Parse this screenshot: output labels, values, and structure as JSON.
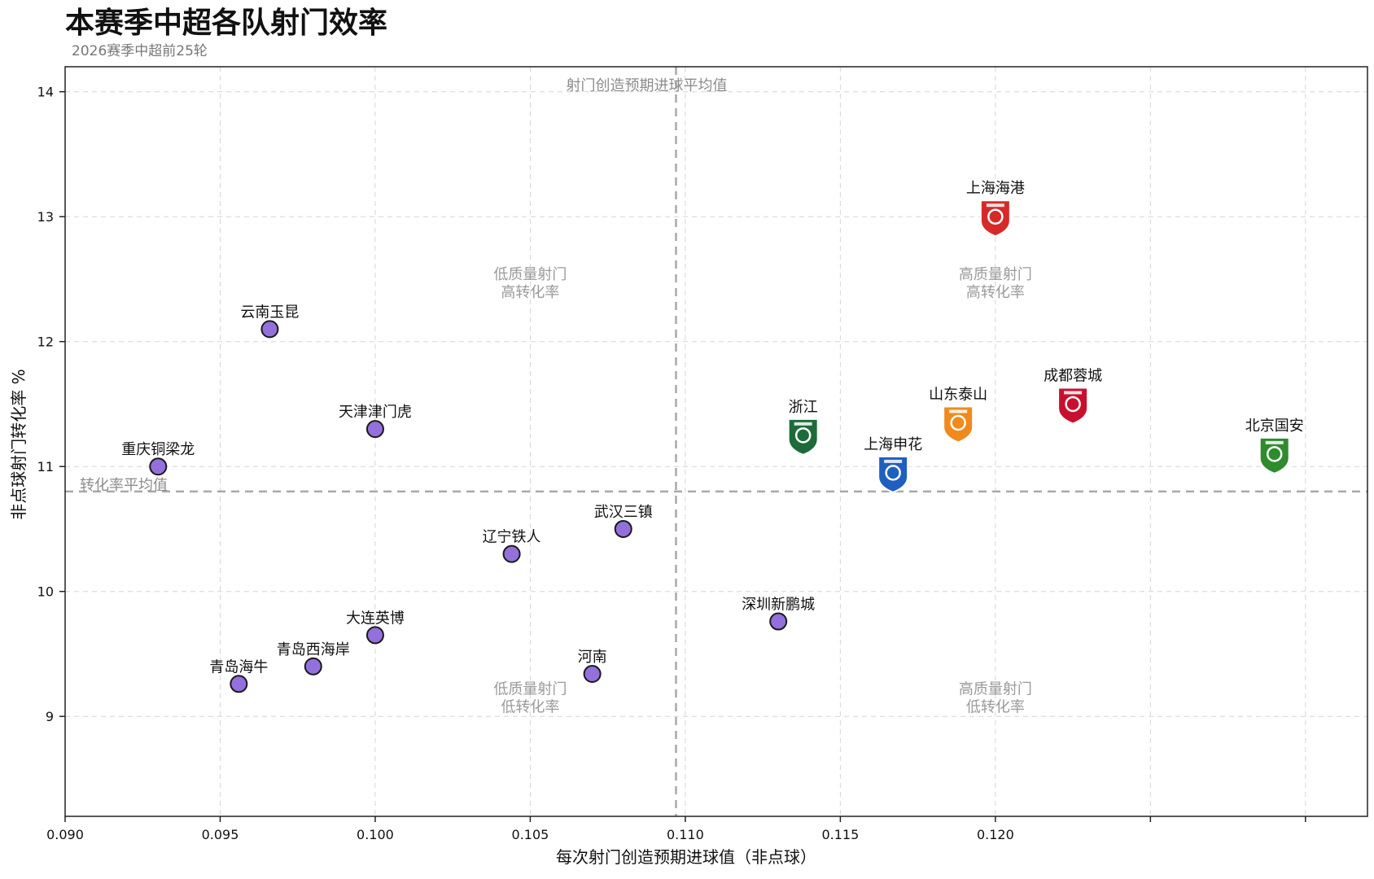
{
  "chart_data": {
    "type": "scatter",
    "title": "本赛季中超各队射门效率",
    "subtitle": "2026赛季中超前25轮",
    "xlabel": "每次射门创造预期进球值（非点球）",
    "ylabel": "非点球射门转化率 %",
    "xlim": [
      0.09,
      0.132
    ],
    "ylim": [
      8.2,
      14.2
    ],
    "xticks": [
      0.09,
      0.095,
      0.1,
      0.105,
      0.11,
      0.115,
      0.12,
      0.125,
      0.13
    ],
    "xtick_labels": [
      "0.090",
      "0.095",
      "0.100",
      "0.105",
      "0.110",
      "0.115",
      "0.120",
      "",
      ""
    ],
    "yticks": [
      9,
      10,
      11,
      12,
      13,
      14
    ],
    "ytick_labels": [
      "9",
      "10",
      "11",
      "12",
      "13",
      "14"
    ],
    "grid": true,
    "reference_lines": {
      "x_avg": 0.1097,
      "x_avg_label": "射门创造预期进球平均值",
      "y_avg": 10.8,
      "y_avg_label": "转化率平均值"
    },
    "quadrant_labels": {
      "top_left": [
        "低质量射门",
        "高转化率"
      ],
      "top_right": [
        "高质量射门",
        "高转化率"
      ],
      "bottom_left": [
        "低质量射门",
        "低转化率"
      ],
      "bottom_right": [
        "高质量射门",
        "低转化率"
      ]
    },
    "points": [
      {
        "team": "上海海港",
        "x": 0.12,
        "y": 13.0,
        "marker": "logo",
        "color": "#d62a2a"
      },
      {
        "team": "云南玉昆",
        "x": 0.0966,
        "y": 12.1,
        "marker": "dot"
      },
      {
        "team": "成都蓉城",
        "x": 0.1225,
        "y": 11.5,
        "marker": "logo",
        "color": "#c8102e"
      },
      {
        "team": "山东泰山",
        "x": 0.1188,
        "y": 11.35,
        "marker": "logo",
        "color": "#f08a1c"
      },
      {
        "team": "天津津门虎",
        "x": 0.1,
        "y": 11.3,
        "marker": "dot"
      },
      {
        "team": "浙江",
        "x": 0.1138,
        "y": 11.25,
        "marker": "logo",
        "color": "#1e6b3a"
      },
      {
        "team": "北京国安",
        "x": 0.129,
        "y": 11.1,
        "marker": "logo",
        "color": "#2e8b2e"
      },
      {
        "team": "重庆铜梁龙",
        "x": 0.093,
        "y": 11.0,
        "marker": "dot"
      },
      {
        "team": "上海申花",
        "x": 0.1167,
        "y": 10.95,
        "marker": "logo",
        "color": "#1f5fbf"
      },
      {
        "team": "武汉三镇",
        "x": 0.108,
        "y": 10.5,
        "marker": "dot"
      },
      {
        "team": "辽宁铁人",
        "x": 0.1044,
        "y": 10.3,
        "marker": "dot"
      },
      {
        "team": "深圳新鹏城",
        "x": 0.113,
        "y": 9.76,
        "marker": "dot"
      },
      {
        "team": "大连英博",
        "x": 0.1,
        "y": 9.65,
        "marker": "dot"
      },
      {
        "team": "青岛西海岸",
        "x": 0.098,
        "y": 9.4,
        "marker": "dot"
      },
      {
        "team": "河南",
        "x": 0.107,
        "y": 9.34,
        "marker": "dot"
      },
      {
        "team": "青岛海牛",
        "x": 0.0956,
        "y": 9.26,
        "marker": "dot"
      }
    ]
  }
}
